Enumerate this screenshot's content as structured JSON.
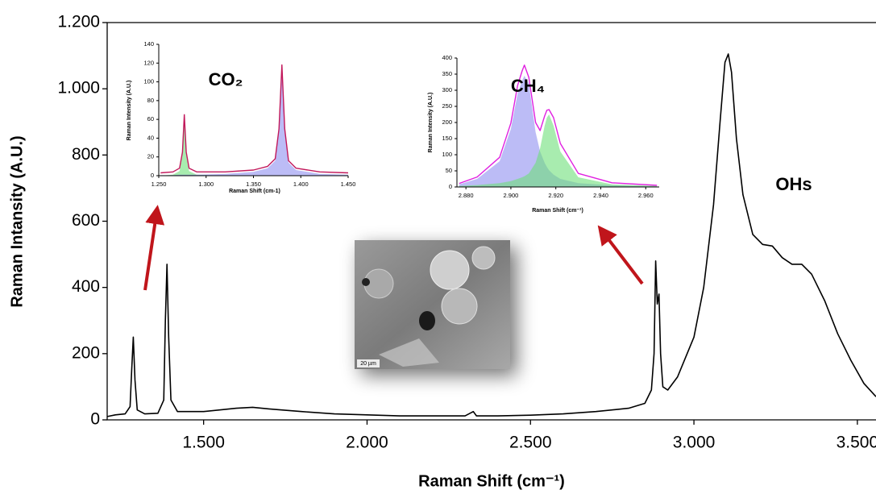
{
  "chart_data": [
    {
      "type": "line",
      "xlabel": "Raman Shift (cm⁻¹)",
      "ylabel": "Raman Intansity (A.U.)",
      "annotations": [
        "OHs"
      ],
      "xlim": [
        1205,
        3557
      ],
      "ylim": [
        0,
        1200
      ],
      "xticks": [
        {
          "value": 1500,
          "label": "1.500"
        },
        {
          "value": 2000,
          "label": "2.000"
        },
        {
          "value": 2500,
          "label": "2.500"
        },
        {
          "value": 3000,
          "label": "3.000"
        },
        {
          "value": 3500,
          "label": "3.500"
        }
      ],
      "yticks": [
        0,
        200,
        400,
        600,
        800,
        {
          "value": 1000,
          "label": "1.000"
        },
        {
          "value": 1200,
          "label": "1.200"
        }
      ],
      "x": [
        1205,
        1230,
        1260,
        1275,
        1280,
        1285,
        1290,
        1297,
        1320,
        1360,
        1378,
        1383,
        1388,
        1393,
        1400,
        1420,
        1500,
        1600,
        1650,
        1700,
        1800,
        1900,
        2000,
        2100,
        2200,
        2300,
        2325,
        2335,
        2400,
        2500,
        2600,
        2700,
        2800,
        2850,
        2870,
        2878,
        2883,
        2888,
        2893,
        2898,
        2905,
        2920,
        2950,
        3000,
        3030,
        3060,
        3080,
        3095,
        3105,
        3115,
        3130,
        3150,
        3180,
        3210,
        3240,
        3270,
        3300,
        3330,
        3360,
        3400,
        3440,
        3480,
        3520,
        3557
      ],
      "series": [
        {
          "color": "#000000",
          "values": [
            10,
            15,
            18,
            40,
            150,
            250,
            120,
            30,
            18,
            20,
            60,
            300,
            470,
            250,
            60,
            25,
            25,
            35,
            38,
            33,
            25,
            18,
            15,
            12,
            12,
            12,
            25,
            12,
            12,
            14,
            18,
            25,
            35,
            50,
            90,
            200,
            480,
            350,
            380,
            200,
            100,
            90,
            130,
            250,
            400,
            650,
            900,
            1080,
            1105,
            1050,
            850,
            680,
            560,
            530,
            525,
            490,
            470,
            470,
            440,
            360,
            260,
            180,
            110,
            70
          ]
        }
      ]
    },
    {
      "type": "line",
      "title": "CO₂",
      "xlabel": "Raman Shift (cm-1)",
      "ylabel": "Raman Intensity (A.U.)",
      "xlim": [
        1250,
        1450
      ],
      "ylim": [
        0,
        140
      ],
      "xticks": [
        {
          "value": 1250,
          "label": "1.250"
        },
        {
          "value": 1300,
          "label": "1.300"
        },
        {
          "value": 1350,
          "label": "1.350"
        },
        {
          "value": 1400,
          "label": "1.400"
        },
        {
          "value": 1450,
          "label": "1.450"
        }
      ],
      "yticks": [
        0,
        20,
        40,
        60,
        80,
        100,
        120,
        140
      ],
      "x": [
        1252,
        1265,
        1272,
        1275,
        1277,
        1279,
        1282,
        1290,
        1320,
        1350,
        1365,
        1373,
        1377,
        1380,
        1383,
        1387,
        1395,
        1420,
        1450
      ],
      "series": [
        {
          "color": "#6ee07a",
          "area": true,
          "values": [
            0,
            1,
            5,
            22,
            62,
            22,
            5,
            1,
            0,
            0,
            0,
            0,
            0,
            0,
            0,
            0,
            0,
            0,
            0
          ]
        },
        {
          "color": "#8f8ff0",
          "area": true,
          "values": [
            0.5,
            0.5,
            1,
            1,
            1,
            1,
            1,
            1,
            2,
            4,
            8,
            16,
            48,
            117,
            48,
            14,
            6,
            2,
            1
          ]
        },
        {
          "color": "#c2185b",
          "values": [
            3,
            4,
            8,
            25,
            65,
            25,
            8,
            4,
            4,
            6,
            10,
            18,
            50,
            118,
            50,
            16,
            8,
            4,
            3
          ]
        }
      ]
    },
    {
      "type": "line",
      "title": "CH₄",
      "xlabel": "Raman Shift (cm⁻¹)",
      "ylabel": "Raman Intensity (A.U.)",
      "xlim": [
        2876,
        2966
      ],
      "ylim": [
        0,
        400
      ],
      "xticks": [
        {
          "value": 2880,
          "label": "2.880"
        },
        {
          "value": 2900,
          "label": "2.900"
        },
        {
          "value": 2920,
          "label": "2.920"
        },
        {
          "value": 2940,
          "label": "2.940"
        },
        {
          "value": 2960,
          "label": "2.960"
        }
      ],
      "yticks": [
        0,
        50,
        100,
        150,
        200,
        250,
        300,
        350,
        400
      ],
      "x": [
        2877,
        2885,
        2895,
        2900,
        2903,
        2905,
        2906,
        2908,
        2911,
        2913,
        2915,
        2916,
        2917,
        2919,
        2922,
        2930,
        2945,
        2965
      ],
      "series": [
        {
          "color": "#8f8ff0",
          "area": true,
          "values": [
            8,
            25,
            80,
            180,
            290,
            330,
            345,
            320,
            170,
            110,
            75,
            62,
            52,
            38,
            25,
            12,
            5,
            2
          ]
        },
        {
          "color": "#6ee07a",
          "area": true,
          "values": [
            3,
            6,
            12,
            18,
            25,
            30,
            33,
            42,
            75,
            120,
            190,
            215,
            225,
            190,
            110,
            30,
            8,
            3
          ]
        },
        {
          "color": "#e020e0",
          "values": [
            11,
            31,
            92,
            198,
            315,
            360,
            378,
            340,
            200,
            175,
            220,
            238,
            240,
            215,
            135,
            42,
            13,
            5
          ]
        }
      ]
    }
  ],
  "image": {
    "scale_bar": "20 µm"
  }
}
